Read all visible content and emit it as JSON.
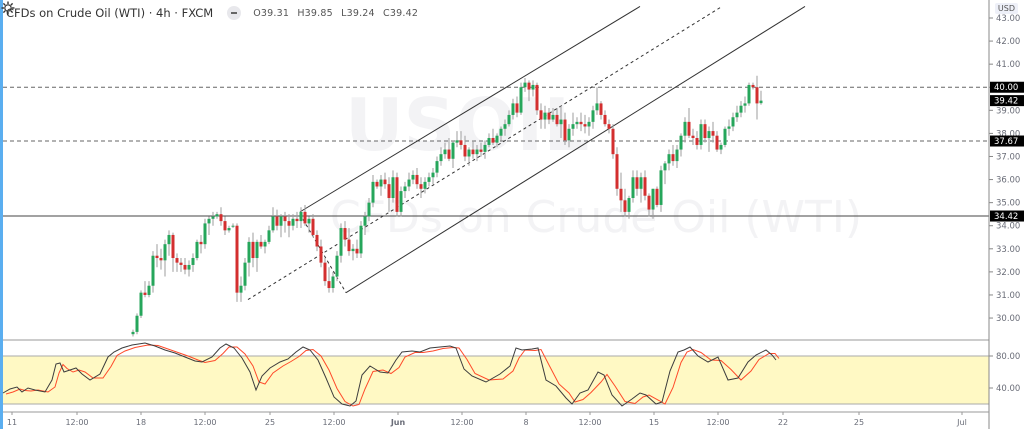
{
  "header": {
    "symbol_title": "CFDs on Crude Oil (WTI) · 4h · FXCM",
    "open": "O39.31",
    "high": "H39.85",
    "low": "L39.24",
    "close": "C39.42"
  },
  "watermark": {
    "ticker": "USOIL",
    "description": "CFDs on Crude Oil (WTI)"
  },
  "price_axis": {
    "currency": "USD",
    "ticks": [
      "43.00",
      "42.00",
      "41.00",
      "40.00",
      "39.00",
      "38.00",
      "37.00",
      "36.00",
      "35.00",
      "34.00",
      "33.00",
      "32.00",
      "31.00",
      "30.00"
    ],
    "tags": [
      {
        "label": "40.00",
        "price": 40.0
      },
      {
        "label": "39.42",
        "price": 39.42
      },
      {
        "label": "37.67",
        "price": 37.67
      },
      {
        "label": "34.42",
        "price": 34.42
      }
    ]
  },
  "oscillator_axis": {
    "ticks": [
      "80.00",
      "40.00"
    ]
  },
  "time_axis": {
    "labels": [
      {
        "text": "11",
        "x": 12
      },
      {
        "text": "12:00",
        "x": 77
      },
      {
        "text": "18",
        "x": 141
      },
      {
        "text": "12:00",
        "x": 205
      },
      {
        "text": "25",
        "x": 270
      },
      {
        "text": "12:00",
        "x": 334
      },
      {
        "text": "Jun",
        "x": 398,
        "bold": true
      },
      {
        "text": "12:00",
        "x": 462
      },
      {
        "text": "8",
        "x": 526
      },
      {
        "text": "12:00",
        "x": 590
      },
      {
        "text": "15",
        "x": 654
      },
      {
        "text": "12:00",
        "x": 718
      },
      {
        "text": "22",
        "x": 783
      },
      {
        "text": "25",
        "x": 859
      },
      {
        "text": "Jul",
        "x": 962
      }
    ]
  },
  "colors": {
    "up": "#26a65b",
    "down": "#d32f2f",
    "wick": "#9e9e9e",
    "oscillator_band": "#fff9c4",
    "stoch_k": "#3d3d3d",
    "stoch_d": "#ff4a2a",
    "tag_bg": "#000000",
    "channel": "#333333"
  },
  "chart_data": {
    "type": "candlestick",
    "title": "CFDs on Crude Oil (WTI) · 4h · FXCM",
    "ylabel": "USD",
    "ylim": [
      29.5,
      43.3
    ],
    "horizontal_lines": [
      {
        "price": 40.0,
        "style": "dashed"
      },
      {
        "price": 37.67,
        "style": "dashed"
      },
      {
        "price": 34.42,
        "style": "solid"
      }
    ],
    "last": {
      "open": 39.31,
      "high": 39.85,
      "low": 39.24,
      "close": 39.42
    },
    "candles": [
      [
        133,
        29.3,
        29.5,
        29.2,
        29.4
      ],
      [
        137,
        29.4,
        30.2,
        29.3,
        30.1
      ],
      [
        141,
        30.1,
        31.2,
        30.0,
        31.1
      ],
      [
        145,
        31.1,
        31.6,
        30.9,
        31.0
      ],
      [
        149,
        31.0,
        31.6,
        30.9,
        31.4
      ],
      [
        153,
        31.4,
        32.9,
        31.1,
        32.7
      ],
      [
        157,
        32.7,
        33.2,
        32.2,
        32.6
      ],
      [
        161,
        32.6,
        33.0,
        32.1,
        32.5
      ],
      [
        165,
        32.5,
        33.4,
        31.8,
        33.2
      ],
      [
        169,
        33.2,
        33.8,
        32.7,
        33.6
      ],
      [
        173,
        33.6,
        33.7,
        32.0,
        32.6
      ],
      [
        177,
        32.6,
        32.8,
        32.0,
        32.4
      ],
      [
        181,
        32.4,
        32.6,
        32.0,
        32.3
      ],
      [
        185,
        32.3,
        32.6,
        31.9,
        32.1
      ],
      [
        189,
        32.1,
        32.5,
        31.8,
        32.3
      ],
      [
        193,
        32.3,
        32.8,
        32.0,
        32.6
      ],
      [
        197,
        32.6,
        33.4,
        32.5,
        33.3
      ],
      [
        201,
        33.3,
        33.6,
        32.8,
        33.2
      ],
      [
        205,
        33.2,
        34.3,
        33.0,
        34.1
      ],
      [
        209,
        34.1,
        34.4,
        33.6,
        34.3
      ],
      [
        213,
        34.3,
        34.6,
        34.0,
        34.4
      ],
      [
        217,
        34.4,
        34.6,
        34.3,
        34.5
      ],
      [
        221,
        34.5,
        34.8,
        34.0,
        34.2
      ],
      [
        225,
        34.2,
        34.4,
        33.6,
        33.8
      ],
      [
        229,
        33.8,
        34.0,
        33.7,
        33.9
      ],
      [
        233,
        34.0,
        34.1,
        33.9,
        34.0
      ],
      [
        237,
        34.0,
        34.1,
        30.7,
        31.1
      ],
      [
        241,
        31.1,
        31.8,
        30.7,
        31.4
      ],
      [
        245,
        31.4,
        32.6,
        31.2,
        32.4
      ],
      [
        249,
        32.4,
        33.5,
        31.8,
        33.3
      ],
      [
        253,
        33.3,
        33.7,
        32.2,
        32.6
      ],
      [
        257,
        32.6,
        33.4,
        32.0,
        33.3
      ],
      [
        261,
        33.3,
        33.6,
        33.0,
        33.1
      ],
      [
        265,
        33.1,
        33.4,
        32.8,
        33.3
      ],
      [
        269,
        33.3,
        34.0,
        33.2,
        33.8
      ],
      [
        273,
        33.8,
        34.8,
        33.7,
        34.4
      ],
      [
        277,
        34.4,
        34.7,
        33.8,
        34.0
      ],
      [
        281,
        34.0,
        34.5,
        33.5,
        34.4
      ],
      [
        285,
        34.4,
        34.6,
        33.7,
        34.2
      ],
      [
        289,
        34.2,
        34.5,
        33.5,
        34.0
      ],
      [
        293,
        34.0,
        34.5,
        33.8,
        34.3
      ],
      [
        297,
        34.3,
        34.6,
        33.9,
        34.2
      ],
      [
        301,
        34.2,
        34.8,
        33.9,
        34.6
      ],
      [
        305,
        34.6,
        34.9,
        34.0,
        34.1
      ],
      [
        309,
        34.1,
        34.4,
        33.7,
        34.3
      ],
      [
        313,
        34.3,
        34.5,
        33.5,
        33.6
      ],
      [
        317,
        33.6,
        33.8,
        32.9,
        33.1
      ],
      [
        321,
        33.1,
        33.4,
        32.2,
        32.4
      ],
      [
        325,
        32.4,
        32.6,
        31.4,
        31.6
      ],
      [
        329,
        31.6,
        32.2,
        31.1,
        31.3
      ],
      [
        333,
        31.3,
        32.0,
        31.1,
        31.8
      ],
      [
        337,
        31.8,
        32.9,
        31.6,
        32.7
      ],
      [
        341,
        32.7,
        34.1,
        32.4,
        33.9
      ],
      [
        345,
        33.9,
        34.2,
        33.1,
        33.4
      ],
      [
        349,
        33.4,
        33.9,
        32.7,
        32.9
      ],
      [
        353,
        32.9,
        33.2,
        32.5,
        33.0
      ],
      [
        357,
        33.0,
        33.4,
        32.6,
        32.8
      ],
      [
        361,
        32.8,
        34.2,
        32.6,
        34.0
      ],
      [
        365,
        34.0,
        34.6,
        33.6,
        34.4
      ],
      [
        369,
        34.4,
        35.2,
        34.2,
        35.0
      ],
      [
        373,
        35.0,
        36.2,
        34.8,
        35.9
      ],
      [
        377,
        35.9,
        36.0,
        35.6,
        35.7
      ],
      [
        381,
        35.7,
        36.2,
        35.3,
        36.0
      ],
      [
        385,
        36.0,
        36.3,
        35.6,
        35.8
      ],
      [
        389,
        35.8,
        36.1,
        34.6,
        35.2
      ],
      [
        393,
        35.2,
        36.4,
        35.0,
        36.1
      ],
      [
        397,
        36.1,
        36.3,
        34.4,
        34.6
      ],
      [
        401,
        34.6,
        35.7,
        34.4,
        35.5
      ],
      [
        405,
        35.5,
        35.9,
        35.2,
        35.7
      ],
      [
        409,
        35.7,
        36.3,
        35.5,
        36.0
      ],
      [
        413,
        36.0,
        36.4,
        35.8,
        36.2
      ],
      [
        417,
        36.2,
        36.5,
        35.6,
        35.8
      ],
      [
        421,
        35.8,
        36.1,
        35.2,
        35.6
      ],
      [
        425,
        35.6,
        36.1,
        35.4,
        35.9
      ],
      [
        429,
        35.9,
        36.3,
        35.7,
        36.1
      ],
      [
        433,
        36.1,
        36.5,
        35.8,
        36.3
      ],
      [
        437,
        36.3,
        37.0,
        36.1,
        36.8
      ],
      [
        441,
        36.8,
        37.4,
        36.6,
        37.1
      ],
      [
        445,
        37.1,
        37.6,
        36.9,
        37.3
      ],
      [
        449,
        37.3,
        37.8,
        36.8,
        36.9
      ],
      [
        453,
        36.9,
        37.7,
        36.5,
        37.6
      ],
      [
        457,
        37.6,
        38.1,
        37.4,
        37.7
      ],
      [
        461,
        37.7,
        38.1,
        37.3,
        37.5
      ],
      [
        465,
        37.5,
        37.9,
        36.8,
        37.0
      ],
      [
        469,
        37.0,
        37.4,
        36.6,
        37.3
      ],
      [
        473,
        37.3,
        37.7,
        36.9,
        37.1
      ],
      [
        477,
        37.1,
        37.5,
        36.8,
        37.3
      ],
      [
        481,
        37.3,
        37.6,
        37.0,
        37.2
      ],
      [
        485,
        37.2,
        37.7,
        36.9,
        37.5
      ],
      [
        489,
        37.5,
        38.0,
        37.4,
        37.8
      ],
      [
        493,
        37.8,
        38.2,
        37.5,
        37.6
      ],
      [
        497,
        37.6,
        38.0,
        37.4,
        37.9
      ],
      [
        501,
        37.9,
        38.3,
        37.7,
        38.2
      ],
      [
        505,
        38.2,
        38.6,
        37.9,
        38.4
      ],
      [
        509,
        38.4,
        39.0,
        38.3,
        38.8
      ],
      [
        513,
        38.8,
        39.5,
        38.6,
        39.3
      ],
      [
        517,
        39.3,
        39.6,
        38.7,
        38.9
      ],
      [
        521,
        38.9,
        40.2,
        38.8,
        40.0
      ],
      [
        525,
        40.0,
        40.4,
        39.8,
        40.2
      ],
      [
        529,
        40.2,
        40.3,
        39.4,
        39.9
      ],
      [
        533,
        39.9,
        40.3,
        39.6,
        40.1
      ],
      [
        537,
        40.1,
        40.2,
        38.8,
        39.0
      ],
      [
        541,
        39.0,
        39.3,
        38.2,
        38.6
      ],
      [
        545,
        38.6,
        39.2,
        38.2,
        38.9
      ],
      [
        549,
        38.9,
        39.1,
        38.4,
        38.6
      ],
      [
        553,
        38.6,
        39.1,
        38.5,
        38.8
      ],
      [
        557,
        38.8,
        39.1,
        38.3,
        38.4
      ],
      [
        561,
        38.4,
        39.2,
        37.8,
        38.6
      ],
      [
        565,
        38.6,
        38.9,
        37.5,
        37.7
      ],
      [
        569,
        37.7,
        38.4,
        37.4,
        38.2
      ],
      [
        573,
        38.2,
        38.9,
        37.9,
        38.4
      ],
      [
        577,
        38.4,
        38.7,
        38.2,
        38.5
      ],
      [
        581,
        38.5,
        38.9,
        38.1,
        38.4
      ],
      [
        585,
        38.4,
        38.8,
        38.0,
        38.3
      ],
      [
        589,
        38.3,
        38.7,
        37.9,
        38.5
      ],
      [
        593,
        38.5,
        39.2,
        38.2,
        39.0
      ],
      [
        597,
        39.0,
        40.0,
        38.8,
        39.3
      ],
      [
        601,
        39.3,
        39.4,
        38.6,
        38.8
      ],
      [
        605,
        38.8,
        39.0,
        38.3,
        38.4
      ],
      [
        609,
        38.4,
        38.6,
        38.0,
        38.2
      ],
      [
        613,
        38.2,
        38.4,
        36.9,
        37.1
      ],
      [
        617,
        37.1,
        37.4,
        35.3,
        35.6
      ],
      [
        621,
        35.6,
        36.3,
        34.6,
        35.1
      ],
      [
        625,
        35.1,
        35.6,
        34.4,
        34.6
      ],
      [
        629,
        34.6,
        35.3,
        34.3,
        35.2
      ],
      [
        633,
        35.2,
        36.4,
        35.0,
        36.1
      ],
      [
        637,
        36.1,
        36.4,
        35.3,
        35.6
      ],
      [
        641,
        35.6,
        36.3,
        35.0,
        36.1
      ],
      [
        645,
        36.1,
        36.4,
        35.1,
        35.3
      ],
      [
        649,
        35.3,
        35.4,
        34.4,
        34.7
      ],
      [
        653,
        34.7,
        35.6,
        34.3,
        35.6
      ],
      [
        657,
        35.6,
        35.7,
        34.8,
        34.9
      ],
      [
        661,
        34.9,
        36.6,
        34.6,
        36.4
      ],
      [
        665,
        36.4,
        36.8,
        35.8,
        36.7
      ],
      [
        669,
        36.7,
        37.3,
        36.4,
        37.1
      ],
      [
        673,
        37.1,
        37.5,
        36.6,
        36.8
      ],
      [
        677,
        36.8,
        37.5,
        36.5,
        37.3
      ],
      [
        681,
        37.3,
        38.0,
        37.0,
        37.9
      ],
      [
        685,
        37.9,
        38.7,
        37.6,
        38.5
      ],
      [
        689,
        38.5,
        39.1,
        37.8,
        37.9
      ],
      [
        693,
        37.9,
        38.2,
        37.5,
        37.8
      ],
      [
        697,
        37.8,
        38.1,
        37.3,
        37.5
      ],
      [
        701,
        37.5,
        38.6,
        37.3,
        38.4
      ],
      [
        705,
        38.4,
        38.6,
        37.6,
        37.8
      ],
      [
        709,
        37.8,
        38.3,
        37.2,
        38.1
      ],
      [
        713,
        38.1,
        38.5,
        37.6,
        37.9
      ],
      [
        717,
        37.9,
        38.1,
        37.2,
        37.3
      ],
      [
        721,
        37.3,
        37.6,
        37.1,
        37.5
      ],
      [
        725,
        37.5,
        38.3,
        37.4,
        38.2
      ],
      [
        729,
        38.2,
        38.6,
        37.9,
        38.3
      ],
      [
        733,
        38.3,
        38.9,
        38.1,
        38.7
      ],
      [
        737,
        38.7,
        39.2,
        38.5,
        38.9
      ],
      [
        741,
        38.9,
        39.4,
        38.7,
        39.2
      ],
      [
        745,
        39.2,
        39.6,
        38.9,
        39.3
      ],
      [
        749,
        39.3,
        40.2,
        39.2,
        40.1
      ],
      [
        753,
        40.1,
        40.2,
        39.9,
        40.0
      ],
      [
        757,
        40.0,
        40.5,
        38.6,
        39.3
      ],
      [
        761,
        39.31,
        39.85,
        39.24,
        39.42
      ]
    ],
    "channel": {
      "upper": [
        [
          300,
          34.6
        ],
        [
          640,
          43.5
        ]
      ],
      "middle_dashed": [
        [
          248,
          30.8
        ],
        [
          722,
          43.5
        ]
      ],
      "lower": [
        [
          346,
          31.1
        ],
        [
          805,
          43.5
        ]
      ],
      "pitch_dashed": [
        [
          300,
          34.5
        ],
        [
          346,
          31.1
        ]
      ]
    },
    "oscillator": {
      "type": "stochastic",
      "band": [
        20,
        80
      ],
      "ticks": [
        80,
        40
      ]
    }
  }
}
